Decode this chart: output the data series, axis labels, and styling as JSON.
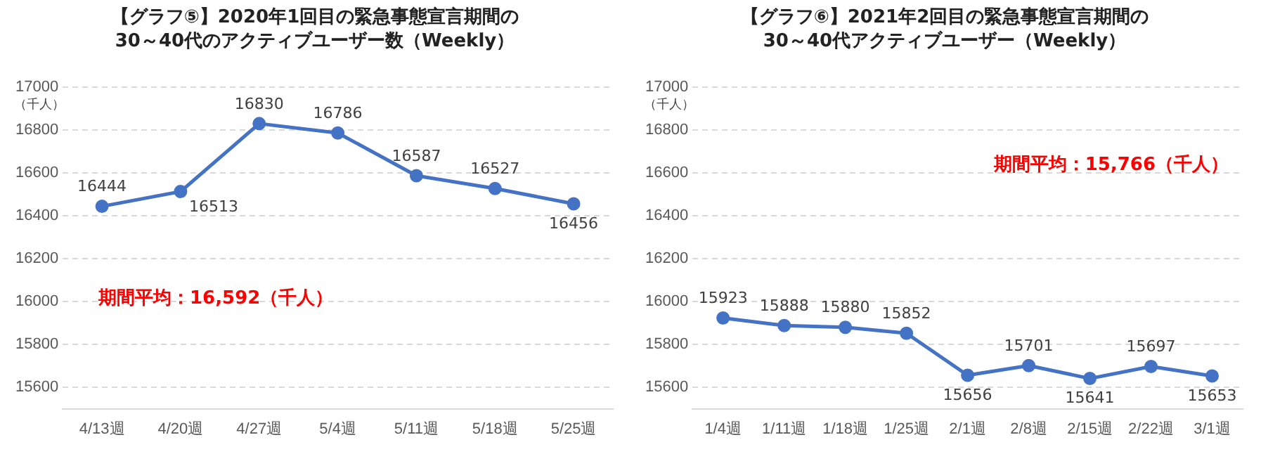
{
  "chart_data": [
    {
      "type": "line",
      "title": "【グラフ⑤】2020年1回目の緊急事態宣言期間の\n30～40代のアクティブユーザー数（Weekly）",
      "ylabel": "（千人）",
      "categories": [
        "4/13週",
        "4/20週",
        "4/27週",
        "5/4週",
        "5/11週",
        "5/18週",
        "5/25週"
      ],
      "series": [
        {
          "color": "#4472c4",
          "values": [
            16444,
            16513,
            16830,
            16786,
            16587,
            16527,
            16456
          ]
        }
      ],
      "ylim": [
        15500,
        17000
      ],
      "yticks": [
        15600,
        15800,
        16000,
        16200,
        16400,
        16600,
        16800,
        17000
      ],
      "grid": "y",
      "marker": "circle",
      "data_labels": true,
      "legend": false,
      "annotations": [
        "期間平均：16,592（千人）"
      ]
    },
    {
      "type": "line",
      "title": "【グラフ⑥】2021年2回目の緊急事態宣言期間の\n30～40代アクティブユーザー（Weekly）",
      "ylabel": "（千人）",
      "categories": [
        "1/4週",
        "1/11週",
        "1/18週",
        "1/25週",
        "2/1週",
        "2/8週",
        "2/15週",
        "2/22週",
        "3/1週"
      ],
      "series": [
        {
          "color": "#4472c4",
          "values": [
            15923,
            15888,
            15880,
            15852,
            15656,
            15701,
            15641,
            15697,
            15653
          ]
        }
      ],
      "ylim": [
        15500,
        17000
      ],
      "yticks": [
        15600,
        15800,
        16000,
        16200,
        16400,
        16600,
        16800,
        17000
      ],
      "grid": "y",
      "marker": "circle",
      "data_labels": true,
      "legend": false,
      "annotations": [
        "期間平均：15,766（千人）"
      ]
    }
  ]
}
